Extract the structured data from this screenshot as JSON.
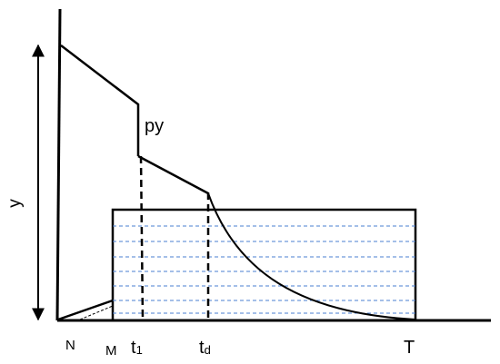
{
  "labels": {
    "py": "py",
    "y": "y",
    "N": "N",
    "M": "M",
    "t1_main": "t",
    "t1_sub": "1",
    "td_main": "t",
    "td_sub": "d",
    "T": "T"
  },
  "colors": {
    "stroke": "#000000",
    "water_lines": "#4a7fd1",
    "background": "#ffffff"
  }
}
